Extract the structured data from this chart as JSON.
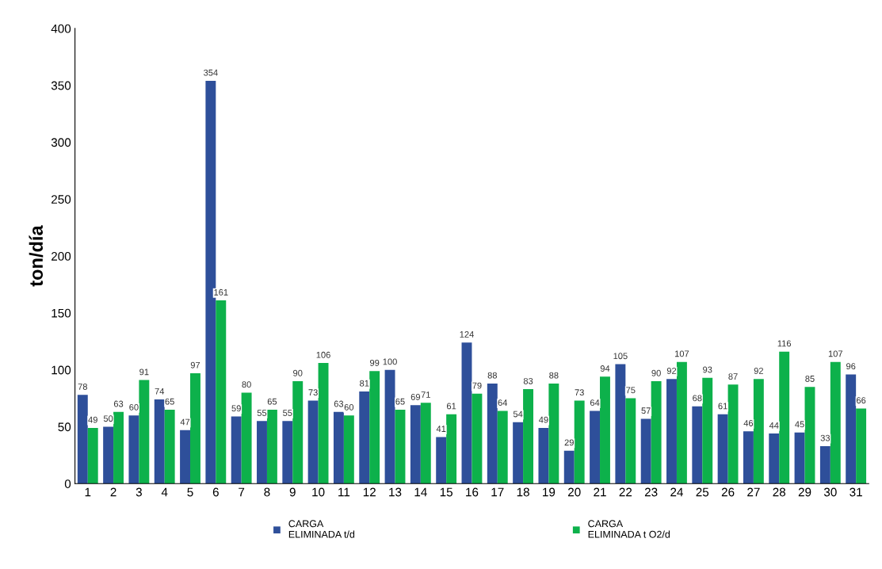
{
  "chart_data": {
    "type": "bar",
    "ylabel": "ton/día",
    "categories": [
      "1",
      "2",
      "3",
      "4",
      "5",
      "6",
      "7",
      "8",
      "9",
      "10",
      "11",
      "12",
      "13",
      "14",
      "15",
      "16",
      "17",
      "18",
      "19",
      "20",
      "21",
      "22",
      "23",
      "24",
      "25",
      "26",
      "27",
      "28",
      "29",
      "30",
      "31"
    ],
    "series": [
      {
        "name": "CARGA\nELIMINADA t/d",
        "color": "#2e4f9a",
        "values": [
          78,
          50,
          60,
          74,
          47,
          354,
          59,
          55,
          55,
          73,
          63,
          81,
          100,
          69,
          41,
          124,
          88,
          54,
          49,
          29,
          64,
          105,
          57,
          92,
          68,
          61,
          46,
          44,
          45,
          33,
          96
        ]
      },
      {
        "name": "CARGA\nELIMINADA t O2/d",
        "color": "#0db14b",
        "values": [
          49,
          63,
          91,
          65,
          97,
          161,
          80,
          65,
          90,
          106,
          60,
          99,
          65,
          71,
          61,
          79,
          64,
          83,
          88,
          73,
          94,
          75,
          90,
          107,
          93,
          87,
          92,
          116,
          85,
          107,
          66
        ]
      }
    ],
    "ylim": [
      0,
      400
    ],
    "yticks": [
      0,
      50,
      100,
      150,
      200,
      250,
      300,
      350,
      400
    ],
    "data_labels": true,
    "grid": false,
    "legend": "bottom"
  }
}
